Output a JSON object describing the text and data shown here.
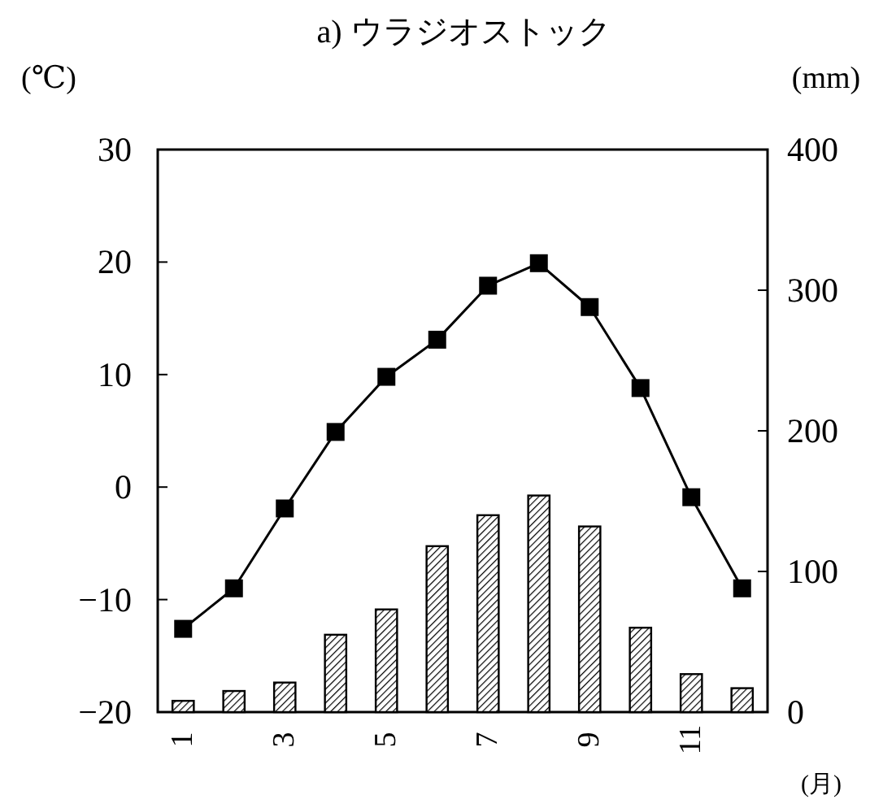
{
  "chart_data": {
    "type": "bar",
    "title": "a) ウラジオストック",
    "xlabel": "(月)",
    "ylabel": "(℃)",
    "y2label": "(mm)",
    "categories": [
      "1",
      null,
      "3",
      null,
      "5",
      null,
      "7",
      null,
      "9",
      null,
      "11",
      null
    ],
    "series": [
      {
        "axis": "y2",
        "color": "#000000",
        "values": [
          8,
          15,
          21,
          55,
          73,
          118,
          140,
          154,
          132,
          60,
          27,
          17
        ]
      },
      {
        "type": "line",
        "axis": "y",
        "color": "#000000",
        "values": [
          -12.6,
          -9.0,
          -1.9,
          4.9,
          9.8,
          13.1,
          17.9,
          19.9,
          16.0,
          8.8,
          -0.9,
          -9.0
        ]
      }
    ],
    "marker": "square",
    "line_style": "solid",
    "ylim": [
      -20,
      30
    ],
    "yticks": [
      -20,
      -10,
      0,
      10,
      20,
      30
    ],
    "y2lim": [
      0,
      400
    ],
    "y2ticks": [
      0,
      100,
      200,
      300,
      400
    ]
  }
}
